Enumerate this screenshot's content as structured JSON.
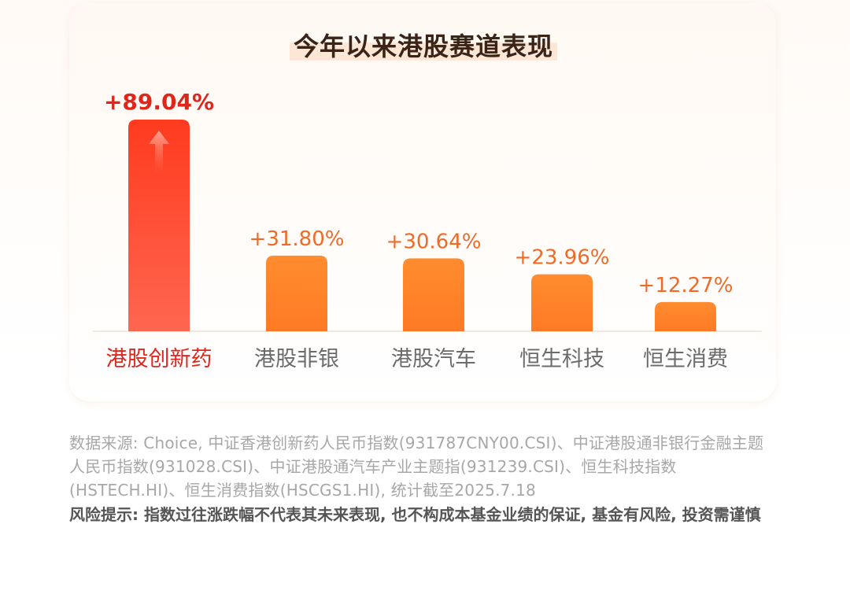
{
  "title": "今年以来港股赛道表现",
  "colors": {
    "highlight_bar_top": "#ff3b1f",
    "highlight_bar_bottom": "#ff5c45",
    "bar_top": "#ff8a2a",
    "bar_bottom": "#ff7424",
    "highlight_text": "#e0251b",
    "value_text": "#f06a27",
    "category_text": "#6b6b6b",
    "baseline": "#f2e6df"
  },
  "chart_data": {
    "type": "bar",
    "categories": [
      "港股创新药",
      "港股非银",
      "港股汽车",
      "恒生科技",
      "恒生消费"
    ],
    "values": [
      89.04,
      31.8,
      30.64,
      23.96,
      12.27
    ],
    "value_labels": [
      "+89.04%",
      "+31.80%",
      "+30.64%",
      "+23.96%",
      "+12.27%"
    ],
    "highlight_index": 0,
    "ylim": [
      0,
      89.04
    ],
    "grid": false,
    "title": "今年以来港股赛道表现"
  },
  "footer": {
    "source": "数据来源: Choice, 中证香港创新药人民币指数(931787CNY00.CSI)、中证港股通非银行金融主题人民币指数(931028.CSI)、中证港股通汽车产业主题指(931239.CSI)、恒生科技指数(HSTECH.HI)、恒生消费指数(HSCGS1.HI), 统计截至2025.7.18",
    "risk": "风险提示: 指数过往涨跌幅不代表其未来表现, 也不构成本基金业绩的保证, 基金有风险, 投资需谨慎"
  },
  "icons": {
    "highlight_bar_arrow": "up-arrow-icon"
  }
}
